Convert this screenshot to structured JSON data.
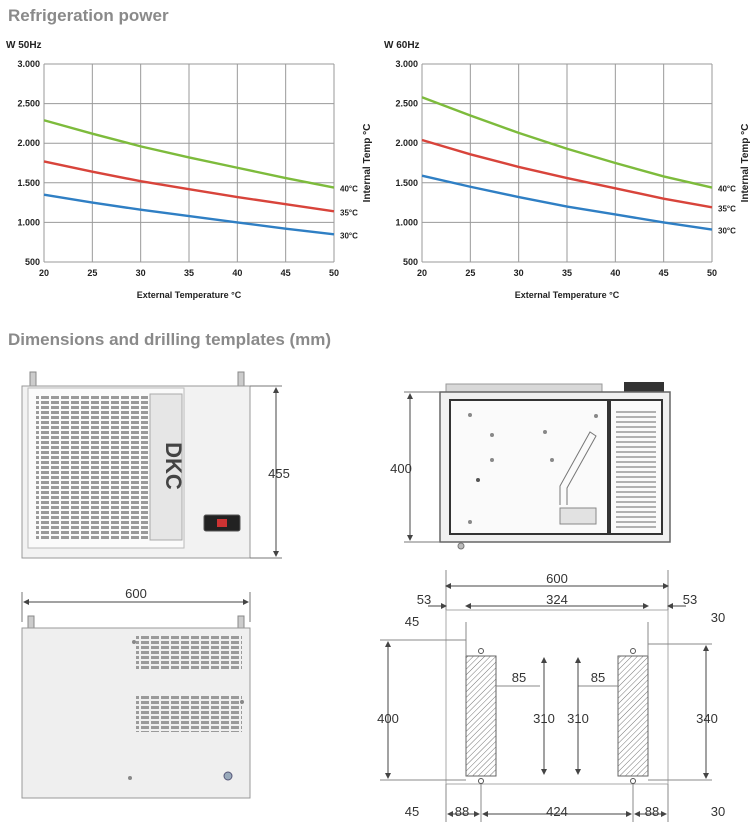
{
  "sections": {
    "refrigeration_title": "Refrigeration power",
    "dimensions_title": "Dimensions and drilling templates (mm)"
  },
  "colors": {
    "green": "#7dbb3c",
    "red": "#d8443b",
    "blue": "#2f7fc4",
    "grid": "#9a9a9a"
  },
  "chart_data": [
    {
      "type": "line",
      "title": "W 50Hz",
      "xlabel": "External Temperature °C",
      "ylabel": "Internal Temp °C",
      "xlim": [
        20,
        50
      ],
      "ylim": [
        500,
        3000
      ],
      "x_ticks": [
        "20",
        "25",
        "30",
        "35",
        "40",
        "45",
        "50"
      ],
      "y_ticks": [
        "3.000",
        "2.500",
        "2.000",
        "1.500",
        "1.000",
        "500"
      ],
      "grid": true,
      "x": [
        20,
        25,
        30,
        35,
        40,
        45,
        50
      ],
      "series": [
        {
          "name": "40°C",
          "color": "#7dbb3c",
          "values": [
            2290,
            2120,
            1960,
            1820,
            1690,
            1560,
            1440
          ]
        },
        {
          "name": "35°C",
          "color": "#d8443b",
          "values": [
            1770,
            1640,
            1520,
            1420,
            1320,
            1230,
            1140
          ]
        },
        {
          "name": "30°C",
          "color": "#2f7fc4",
          "values": [
            1350,
            1250,
            1160,
            1080,
            1000,
            920,
            850
          ]
        }
      ]
    },
    {
      "type": "line",
      "title": "W 60Hz",
      "xlabel": "External Temperature °C",
      "ylabel": "Internal Temp °C",
      "xlim": [
        20,
        50
      ],
      "ylim": [
        500,
        3000
      ],
      "x_ticks": [
        "20",
        "25",
        "30",
        "35",
        "40",
        "45",
        "50"
      ],
      "y_ticks": [
        "3.000",
        "2.500",
        "2.000",
        "1.500",
        "1.000",
        "500"
      ],
      "grid": true,
      "x": [
        20,
        25,
        30,
        35,
        40,
        45,
        50
      ],
      "series": [
        {
          "name": "40°C",
          "color": "#7dbb3c",
          "values": [
            2580,
            2350,
            2130,
            1930,
            1750,
            1580,
            1440
          ]
        },
        {
          "name": "35°C",
          "color": "#d8443b",
          "values": [
            2040,
            1860,
            1700,
            1560,
            1430,
            1300,
            1190
          ]
        },
        {
          "name": "30°C",
          "color": "#2f7fc4",
          "values": [
            1590,
            1450,
            1320,
            1200,
            1100,
            1000,
            910
          ]
        }
      ]
    }
  ],
  "drawing": {
    "logo": "DKC",
    "dims": {
      "height_front": "455",
      "height_back": "400",
      "width_top": "600",
      "tmpl_width": "600",
      "tmpl_left_margin": "53",
      "tmpl_center": "324",
      "tmpl_right_margin": "53",
      "tmpl_top_left": "45",
      "tmpl_top_right": "30",
      "tmpl_height_left": "400",
      "tmpl_height_right": "340",
      "tmpl_cut_w_left": "85",
      "tmpl_cut_w_right": "85",
      "tmpl_cut_h_left": "310",
      "tmpl_cut_h_right": "310",
      "tmpl_bottom_left": "45",
      "tmpl_bottom_right": "30",
      "tmpl_b_88_left": "88",
      "tmpl_b_424": "424",
      "tmpl_b_88_right": "88"
    }
  }
}
